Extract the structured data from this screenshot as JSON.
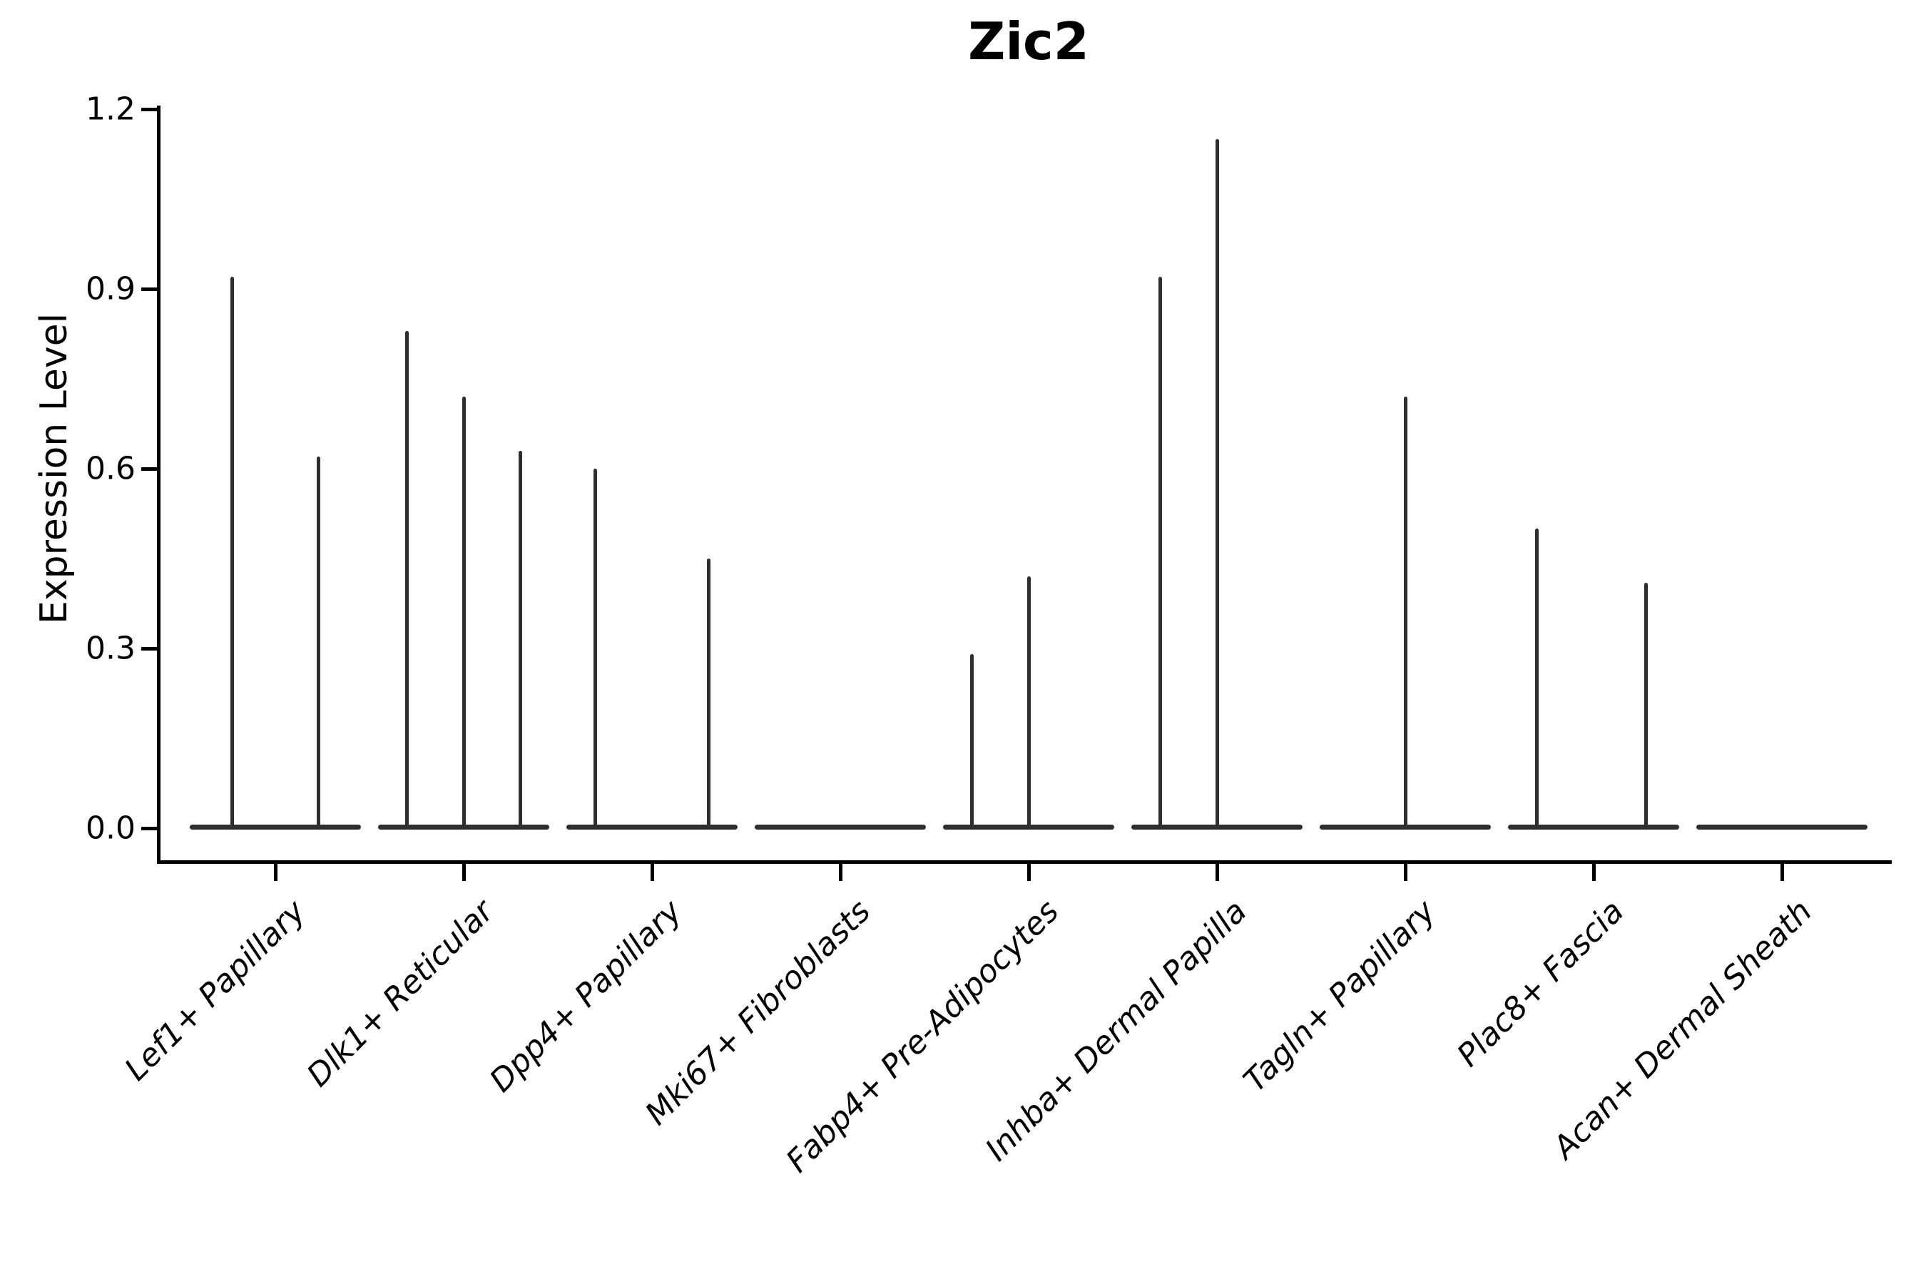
{
  "chart_data": {
    "type": "violin",
    "title": "Zic2",
    "xlabel": "",
    "ylabel": "Expression Level",
    "ylim": [
      0.0,
      1.2
    ],
    "yticks": [
      "0.0",
      "0.3",
      "0.6",
      "0.9",
      "1.2"
    ],
    "grid": false,
    "legend": null,
    "background": "#ffffff",
    "line_color": "#2e2e2e",
    "axis_color": "#000000",
    "x_tick_style": "italic, rotated 45 degrees",
    "categories": [
      "Lef1+ Papillary",
      "Dlk1+ Reticular",
      "Dpp4+ Papillary",
      "Mki67+ Fibroblasts",
      "Fabp4+ Pre-Adipocytes",
      "Inhba+ Dermal Papilla",
      "Tagln+ Papillary",
      "Plac8+ Fascia",
      "Acan+ Dermal Sheath"
    ],
    "description": "Flat violins concentrated at expression 0 with thin spikes rising to the max expression value; spike offset is the horizontal position of each sub-violin centre as a fraction of the category slot width.",
    "series": [
      {
        "category": "Lef1+ Papillary",
        "spikes": [
          {
            "offset": -0.23,
            "peak": 0.92
          },
          {
            "offset": 0.23,
            "peak": 0.62
          }
        ]
      },
      {
        "category": "Dlk1+ Reticular",
        "spikes": [
          {
            "offset": -0.3,
            "peak": 0.83
          },
          {
            "offset": 0.0,
            "peak": 0.72
          },
          {
            "offset": 0.3,
            "peak": 0.63
          }
        ]
      },
      {
        "category": "Dpp4+ Papillary",
        "spikes": [
          {
            "offset": -0.3,
            "peak": 0.6
          },
          {
            "offset": 0.3,
            "peak": 0.45
          }
        ]
      },
      {
        "category": "Mki67+ Fibroblasts",
        "spikes": []
      },
      {
        "category": "Fabp4+ Pre-Adipocytes",
        "spikes": [
          {
            "offset": -0.3,
            "peak": 0.29
          },
          {
            "offset": 0.0,
            "peak": 0.42
          }
        ]
      },
      {
        "category": "Inhba+ Dermal Papilla",
        "spikes": [
          {
            "offset": -0.3,
            "peak": 0.92
          },
          {
            "offset": 0.0,
            "peak": 1.15
          }
        ]
      },
      {
        "category": "Tagln+ Papillary",
        "spikes": [
          {
            "offset": 0.0,
            "peak": 0.72
          }
        ]
      },
      {
        "category": "Plac8+ Fascia",
        "spikes": [
          {
            "offset": -0.3,
            "peak": 0.5
          },
          {
            "offset": 0.28,
            "peak": 0.41
          }
        ]
      },
      {
        "category": "Acan+ Dermal Sheath",
        "spikes": []
      }
    ]
  }
}
